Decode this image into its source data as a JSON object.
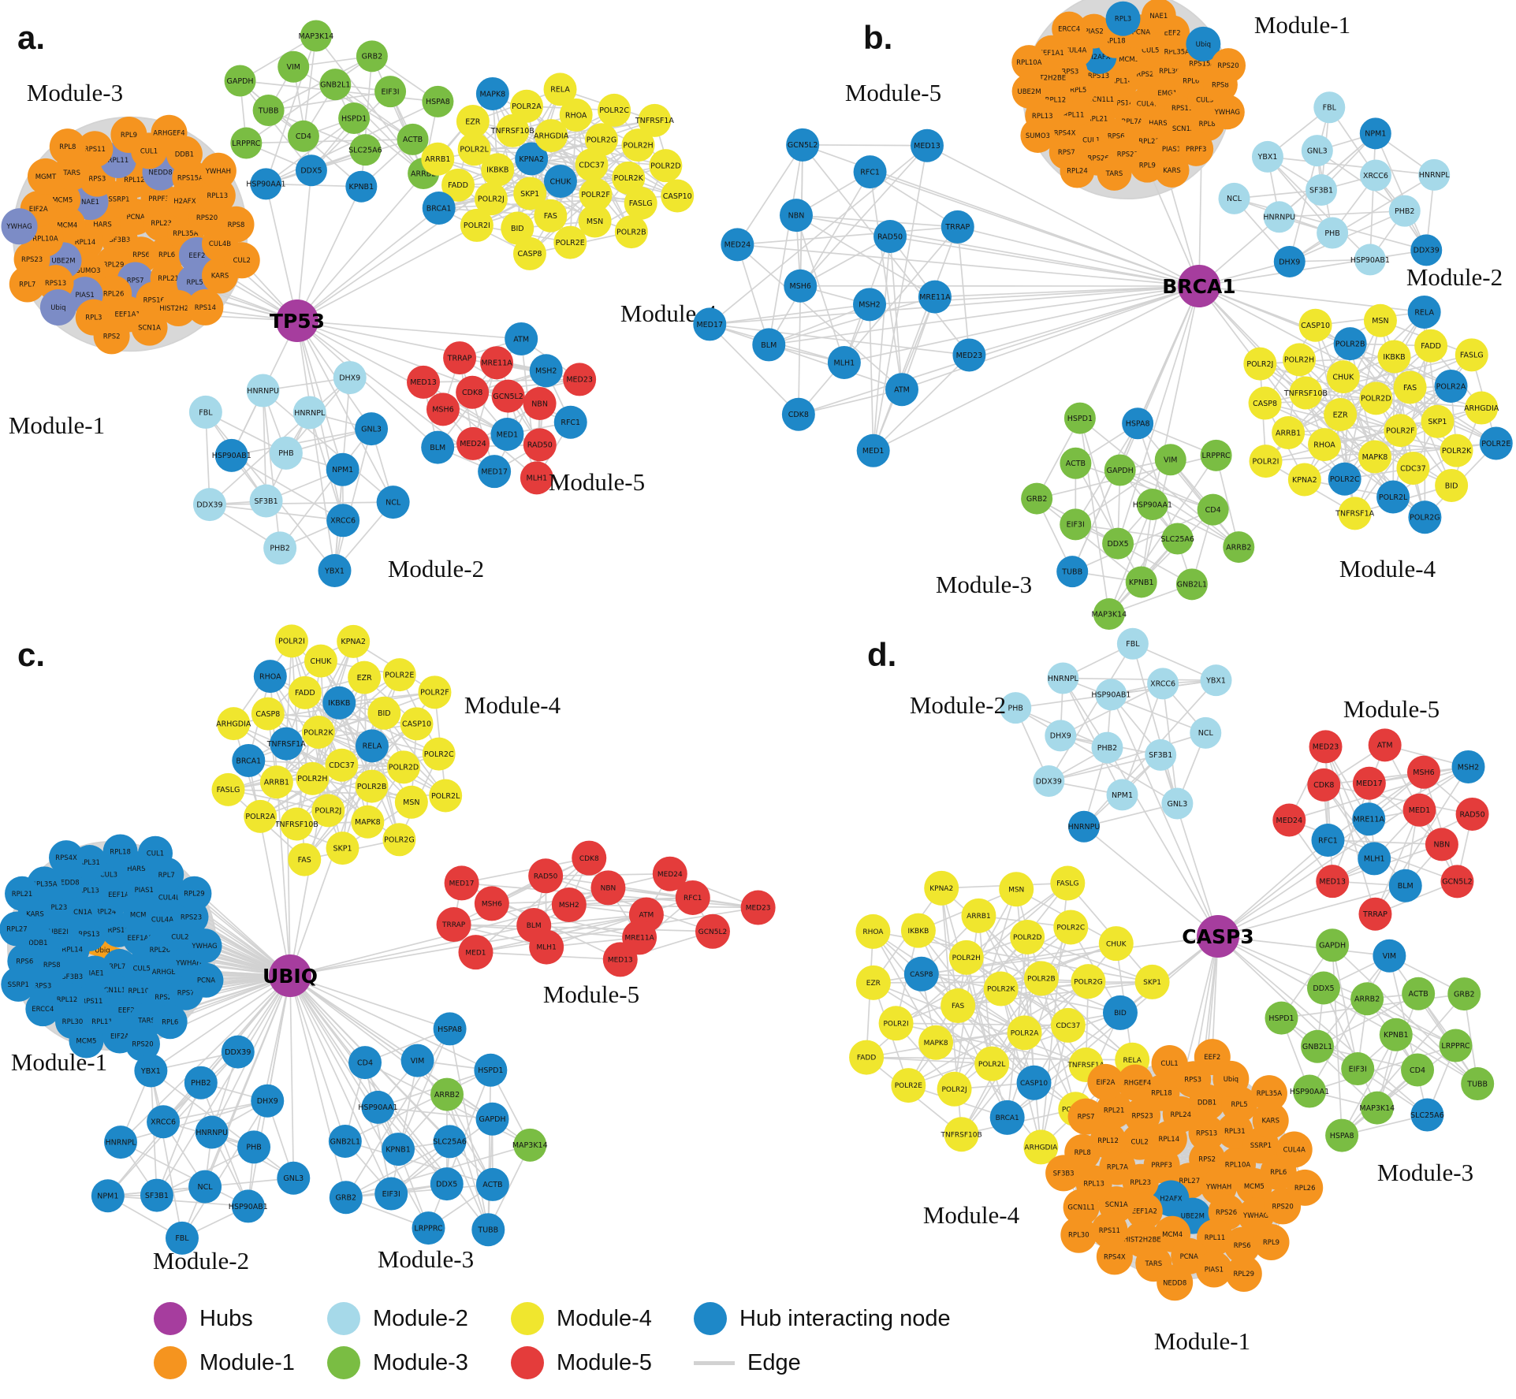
{
  "colors": {
    "hub": "#A63D9E",
    "module1": "#F5941F",
    "module2": "#A6D9E9",
    "module3": "#7ABD43",
    "module4": "#F0E62E",
    "module5": "#E43C3B",
    "hubnode": "#1E88C8",
    "slate": "#7C8CC6",
    "star": "#F6A01D",
    "edge": "#D2D2D2"
  },
  "legend": {
    "items": [
      {
        "label": "Hubs",
        "color": "hub"
      },
      {
        "label": "Module-1",
        "color": "module1"
      },
      {
        "label": "Module-2",
        "color": "module2"
      },
      {
        "label": "Module-3",
        "color": "module3"
      },
      {
        "label": "Module-4",
        "color": "module4"
      },
      {
        "label": "Module-5",
        "color": "module5"
      },
      {
        "label": "Hub interacting node",
        "color": "hubnode"
      },
      {
        "label": "Edge",
        "color": "edge",
        "type": "line"
      }
    ]
  },
  "panels": [
    {
      "id": "a",
      "letter": "a.",
      "hub": "TP53",
      "modules": [
        {
          "name": "Module-3",
          "color": "module3",
          "nodes": [
            "HSPD1",
            "CD4",
            "GNB2L1",
            "SLC25A6",
            "TUBB",
            "EIF3I",
            "DDX5|hubnode",
            "VIM",
            "ACTB",
            "LRPPRC",
            "GRB2",
            "KPNB1|hubnode",
            "GAPDH",
            "HSPA8",
            "HSP90AA1|hubnode",
            "MAP3K14",
            "ARRB2"
          ]
        },
        {
          "name": "Module-4",
          "color": "module4",
          "nodes": [
            "CHUK|hubnode",
            "KPNA2|hubnode",
            "CDC37",
            "SKP1",
            "ARHGDIA",
            "POLR2F",
            "IKBKB",
            "POLR2G",
            "FAS",
            "TNFRSF10B",
            "POLR2K",
            "POLR2J",
            "RHOA",
            "MSN",
            "POLR2L",
            "POLR2H",
            "BID",
            "POLR2A",
            "FASLG",
            "FADD",
            "POLR2C",
            "POLR2E",
            "EZR",
            "POLR2D",
            "POLR2I",
            "RELA",
            "POLR2B",
            "ARRB1",
            "TNFRSF1A",
            "CASP8",
            "MAPK8|hubnode",
            "CASP10",
            "BRCA1|hubnode"
          ]
        },
        {
          "name": "Module-1",
          "color": "module1",
          "nodes": [
            "SF3B3",
            "PCNA",
            "RPS6",
            "HARS",
            "RPL23",
            "RPL29",
            "SSRP1",
            "RPL6",
            "RPL14",
            "PRPF3",
            "RPS7|slate",
            "NAE1|slate",
            "RPL35A",
            "SUMO3",
            "RPL12",
            "RPL21",
            "MCM4",
            "H2AFX",
            "RPL26",
            "RPS3",
            "EEF2|slate",
            "UBE2M|slate",
            "NEDD8|slate",
            "RPS16",
            "MCM5",
            "RPS20",
            "PIAS1|slate",
            "RPL11|slate",
            "RPL5|slate",
            "RPL10A",
            "RPS15A",
            "EEF1A1",
            "TARS",
            "CUL4B",
            "RPS13",
            "CUL1",
            "HIST2H2BE",
            "EIF2A",
            "RPL13",
            "RPL3",
            "RPS11",
            "KARS",
            "RPS23",
            "DDB1",
            "SCN1A",
            "MGMT",
            "RPS8",
            "Ubiq|slate",
            "RPL9",
            "RPS14",
            "YWHAG|slate",
            "YWHAH",
            "RPS2",
            "RPL8",
            "CUL2",
            "RPL7",
            "ARHGEF4"
          ]
        },
        {
          "name": "Module-2",
          "color": "module2",
          "nodes": [
            "PHB",
            "NPM1|hubnode",
            "SF3B1",
            "HNRNPL",
            "XRCC6|hubnode",
            "HSP90AB1|hubnode",
            "GNL3|hubnode",
            "PHB2",
            "HNRNPU",
            "NCL|hubnode",
            "DDX39",
            "DHX9",
            "YBX1|hubnode",
            "FBL"
          ]
        },
        {
          "name": "Module-5",
          "color": "module5",
          "nodes": [
            "GCN5L2",
            "MED1|hubnode",
            "CDK8",
            "NBN",
            "MED24",
            "MRE11A",
            "RAD50",
            "MSH6",
            "MSH2|hubnode",
            "MED17|hubnode",
            "TRRAP",
            "RFC1|hubnode",
            "BLM|hubnode",
            "ATM|hubnode",
            "MLH1",
            "MED13",
            "MED23"
          ]
        }
      ]
    },
    {
      "id": "b",
      "letter": "b.",
      "hub": "BRCA1",
      "modules": [
        {
          "name": "Module-5",
          "color": "hubnode",
          "nodes": [
            "MSH2",
            "MSH6",
            "RAD50",
            "MLH1",
            "NBN",
            "MRE11A",
            "BLM",
            "RFC1",
            "ATM",
            "MED24",
            "TRRAP",
            "CDK8",
            "GCN5L2",
            "MED23",
            "MED17",
            "MED13",
            "MED1"
          ]
        },
        {
          "name": "Module-1",
          "color": "module1",
          "nodes": [
            "RPS14",
            "RPL14",
            "CUL4B",
            "GCN1L1",
            "RPS2",
            "RPL7A",
            "RPS13",
            "EMG1",
            "RPL21",
            "MCM5",
            "HARS",
            "RPL5",
            "RPL30",
            "RPS6",
            "H2AFX|hubnode",
            "RPS11",
            "RPL11",
            "CUL5",
            "RPL23",
            "RPS3",
            "RPL6",
            "CUL1",
            "RPL18",
            "SCN1A",
            "RPL12",
            "RPL35A",
            "RPS23",
            "CUL4A",
            "CUL3",
            "RPS4X",
            "PCNA",
            "PIAS1",
            "HIST2H2BE",
            "RPS15A",
            "RPS26",
            "PIAS2",
            "RPL8",
            "RPL13",
            "EEF2",
            "RPL9",
            "EEF1A1",
            "RPS8",
            "RPS7",
            "RPL3|hubnode",
            "PRPF3",
            "UBE2M",
            "Ubiq|hubnode",
            "TARS",
            "ERCC4",
            "YWHAG",
            "SUMO3",
            "NAE1",
            "KARS",
            "RPL10A",
            "RPS20",
            "RPL24"
          ]
        },
        {
          "name": "Module-2",
          "color": "module2",
          "nodes": [
            "SF3B1",
            "XRCC6",
            "PHB",
            "GNL3",
            "PHB2",
            "HNRNPU",
            "NPM1|hubnode",
            "HSP90AB1",
            "YBX1",
            "HNRNPL",
            "DHX9|hubnode",
            "FBL",
            "DDX39|hubnode",
            "NCL"
          ]
        },
        {
          "name": "Module-4",
          "color": "module4",
          "nodes": [
            "POLR2D",
            "POLR2F",
            "EZR",
            "FAS",
            "MAPK8",
            "CHUK",
            "SKP1",
            "RHOA",
            "IKBKB",
            "CDC37",
            "TNFRSF10B",
            "POLR2A|hubnode",
            "POLR2C|hubnode",
            "POLR2B|hubnode",
            "POLR2K",
            "ARRB1",
            "FADD",
            "POLR2L|hubnode",
            "POLR2H",
            "ARHGDIA",
            "KPNA2",
            "MSN",
            "BID",
            "CASP8",
            "FASLG",
            "TNFRSF1A",
            "CASP10",
            "POLR2E|hubnode",
            "POLR2I",
            "RELA|hubnode",
            "POLR2G|hubnode",
            "POLR2J"
          ]
        },
        {
          "name": "Module-3",
          "color": "module3",
          "nodes": [
            "HSP90AA1",
            "DDX5",
            "GAPDH",
            "SLC25A6",
            "EIF3I",
            "VIM",
            "KPNB1",
            "ACTB",
            "CD4",
            "TUBB|hubnode",
            "HSPA8|hubnode",
            "GNB2L1",
            "GRB2",
            "LRPPRC",
            "MAP3K14",
            "HSPD1",
            "ARRB2"
          ]
        }
      ]
    },
    {
      "id": "c",
      "letter": "c.",
      "hub": "UBIQ",
      "modules": [
        {
          "name": "Module-4",
          "color": "module4",
          "nodes": [
            "CDC37",
            "POLR2K",
            "RELA|hubnode",
            "POLR2H",
            "IKBKB|hubnode",
            "POLR2B",
            "TNFRSF1A|hubnode",
            "BID",
            "POLR2J",
            "FADD",
            "POLR2D",
            "ARRB1",
            "EZR",
            "MAPK8",
            "CASP8",
            "CASP10",
            "TNFRSF10B",
            "CHUK",
            "MSN",
            "BRCA1|hubnode",
            "POLR2E",
            "SKP1",
            "RHOA|hubnode",
            "POLR2C",
            "POLR2A",
            "KPNA2",
            "POLR2G",
            "ARHGDIA",
            "POLR2F",
            "FAS",
            "POLR2I",
            "POLR2L",
            "FASLG"
          ]
        },
        {
          "name": "Module-1",
          "color": "hubnode",
          "nodes": [
            "Ubiq|star",
            "RPS16",
            "RPL7A",
            "RPS13",
            "EEF1A2",
            "NAE1",
            "RPL24",
            "CUL5",
            "RPL14",
            "MCM4",
            "GCN1L1",
            "SCN1A",
            "RPL26",
            "SF3B3",
            "EEF1A1",
            "RPL10A",
            "UBE2I",
            "CUL4A",
            "RPS11",
            "RPL13",
            "ARHGEF4",
            "RPS8",
            "PIAS1",
            "EEF2",
            "RPL23",
            "CUL2",
            "RPL12",
            "CUL3",
            "RPS2",
            "DDB1",
            "CUL4B",
            "RPL11",
            "NEDD8",
            "YWHAH",
            "RPS3",
            "HARS",
            "TARS",
            "KARS",
            "RPS23",
            "RPL30",
            "RPL31",
            "RPS7",
            "RPS6",
            "RPL7",
            "EIF2A",
            "RPL35A",
            "YWHAG",
            "ERCC4",
            "RPL18",
            "RPL6",
            "RPL27",
            "RPL29",
            "MCM5",
            "RPS4X",
            "PCNA",
            "SSRP1",
            "CUL1",
            "RPS20",
            "RPL21"
          ]
        },
        {
          "name": "Module-5",
          "color": "module5",
          "nodes": [
            "MSH2",
            "ATM",
            "BLM",
            "NBN",
            "MRE11A",
            "MSH6",
            "RFC1",
            "MLH1",
            "RAD50",
            "GCN5L2",
            "TRRAP",
            "MED24",
            "MED13",
            "MED17",
            "MED23",
            "MED1",
            "CDK8"
          ]
        },
        {
          "name": "Module-2",
          "color": "hubnode",
          "nodes": [
            "HNRNPU",
            "NCL",
            "XRCC6",
            "PHB",
            "SF3B1",
            "PHB2",
            "HSP90AB1",
            "HNRNPL",
            "DHX9",
            "FBL",
            "YBX1",
            "GNL3",
            "NPM1",
            "DDX39"
          ]
        },
        {
          "name": "Module-3",
          "color": "hubnode",
          "nodes": [
            "SLC25A6",
            "KPNB1",
            "ARRB2|module3",
            "DDX5",
            "HSP90AA1",
            "GAPDH",
            "EIF3I",
            "VIM",
            "ACTB",
            "GNB2L1",
            "HSPD1",
            "LRPPRC",
            "CD4",
            "MAP3K14|module3",
            "GRB2",
            "HSPA8",
            "TUBB"
          ]
        }
      ]
    },
    {
      "id": "d",
      "letter": "d.",
      "hub": "CASP3",
      "modules": [
        {
          "name": "Module-2",
          "color": "module2",
          "nodes": [
            "PHB2",
            "HSP90AB1",
            "SF3B1",
            "DHX9",
            "XRCC6",
            "NPM1",
            "HNRNPL",
            "NCL",
            "DDX39",
            "FBL",
            "GNL3",
            "PHB",
            "YBX1",
            "HNRNPU|hubnode"
          ]
        },
        {
          "name": "Module-5",
          "color": "module5",
          "nodes": [
            "MRE11A|hubnode",
            "MED1",
            "MLH1|hubnode",
            "MED17",
            "NBN",
            "RFC1|hubnode",
            "MSH6",
            "BLM|hubnode",
            "CDK8",
            "RAD50",
            "MED13",
            "ATM",
            "GCN5L2",
            "MED24",
            "MSH2|hubnode",
            "TRRAP",
            "MED23"
          ]
        },
        {
          "name": "Module-4",
          "color": "module4",
          "nodes": [
            "POLR2K",
            "POLR2A",
            "FAS",
            "POLR2B",
            "POLR2L",
            "POLR2H",
            "CDC37",
            "MAPK8",
            "POLR2D",
            "CASP10|hubnode",
            "CASP8|hubnode",
            "POLR2G",
            "POLR2J",
            "ARRB1",
            "TNFRSF1A",
            "POLR2I",
            "POLR2C",
            "BRCA1|hubnode",
            "IKBKB",
            "BID|hubnode",
            "POLR2E",
            "MSN",
            "POLR2F",
            "EZR",
            "CHUK",
            "TNFRSF10B",
            "KPNA2",
            "RELA",
            "FADD",
            "FASLG",
            "ARHGDIA",
            "RHOA",
            "SKP1"
          ]
        },
        {
          "name": "Module-3",
          "color": "module3",
          "nodes": [
            "KPNB1",
            "EIF3I",
            "ARRB2",
            "CD4",
            "GNB2L1",
            "ACTB",
            "MAP3K14",
            "DDX5",
            "LRPPRC",
            "HSP90AA1",
            "VIM|hubnode",
            "SLC25A6|hubnode",
            "HSPD1",
            "GRB2",
            "HSPA8",
            "GAPDH",
            "TUBB"
          ]
        },
        {
          "name": "Module-1",
          "color": "module1",
          "nodes": [
            "RPL27",
            "PRPF3",
            "RPS2",
            "H2AFX|hubnode",
            "RPL14",
            "YWHAH",
            "RPL23",
            "RPS13",
            "UBE2M|hubnode",
            "CUL2",
            "RPL10A",
            "EEF1A2",
            "RPL24",
            "RPS26",
            "RPL7A",
            "RPL31",
            "MCM4",
            "RPS23",
            "MCM5",
            "SCN1A",
            "DDB1",
            "RPL11",
            "RPL12",
            "SSRP1",
            "HIST2H2BE",
            "RPL18",
            "YWHAG",
            "RPL13",
            "RPL5",
            "PCNA",
            "RPL21",
            "RPL6",
            "RPS11",
            "RPS3",
            "RPS6",
            "RPL8",
            "KARS",
            "TARS",
            "ARHGEF4",
            "RPS20",
            "GCN1L1",
            "Ubiq",
            "PIAS1",
            "RPS7",
            "CUL4A",
            "RPS4X",
            "CUL1",
            "RPL9",
            "SF3B3",
            "RPL35A",
            "NEDD8",
            "EIF2A",
            "RPL26",
            "RPL30",
            "EEF2",
            "RPL29"
          ]
        }
      ]
    }
  ]
}
